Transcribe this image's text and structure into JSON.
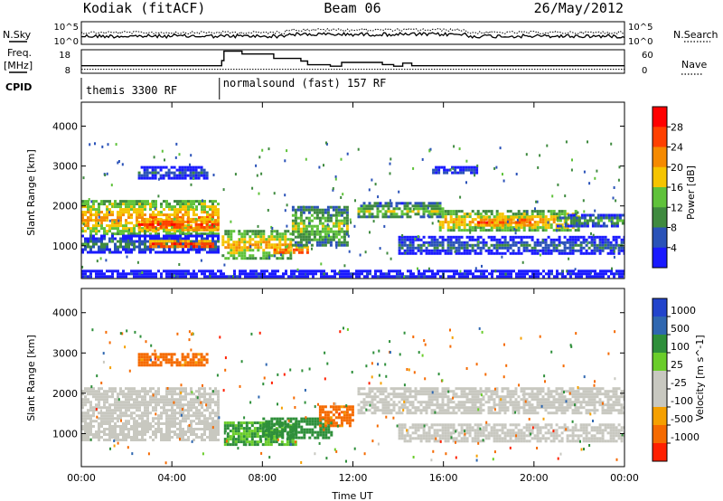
{
  "header": {
    "station": "Kodiak (fitACF)",
    "beam": "Beam 06",
    "date": "26/May/2012"
  },
  "side_labels": {
    "nsky": "N.Sky",
    "freq_line1": "Freq.",
    "freq_line2": "[MHz]",
    "cpid": "CPID",
    "nsearch": "N.Search",
    "nave": "Nave"
  },
  "colors": {
    "power_scale": [
      "#1a1aff",
      "#2a52b8",
      "#3f8a3f",
      "#5fc23a",
      "#f5c400",
      "#f58a00",
      "#ff4000",
      "#ff0000"
    ],
    "velocity_scale": [
      "#2244cc",
      "#2f67b0",
      "#2e8f3a",
      "#6acd2a",
      "#c8c8c0",
      "#c8c8c0",
      "#f5a000",
      "#f56a00",
      "#ff2000"
    ]
  },
  "chart_data": [
    {
      "type": "line",
      "name": "noise-panel",
      "left_axis": {
        "label": "N.Sky",
        "ticks": [
          "10^5",
          "10^0"
        ]
      },
      "right_axis": {
        "label": "N.Search",
        "ticks": [
          "10^5",
          "10^0"
        ]
      },
      "x": {
        "range": [
          0,
          24
        ],
        "unit": "hours UT"
      }
    },
    {
      "type": "line",
      "name": "frequency-panel",
      "left_axis": {
        "label": "Freq. [MHz]",
        "ticks": [
          18,
          8
        ],
        "range": [
          8,
          18
        ]
      },
      "right_axis": {
        "label": "Nave",
        "ticks": [
          60,
          0
        ],
        "range": [
          0,
          60
        ]
      },
      "freq_steps": [
        [
          0,
          11.2
        ],
        [
          6.2,
          11.2
        ],
        [
          6.2,
          13.4
        ],
        [
          6.3,
          13.4
        ],
        [
          6.3,
          17.4
        ],
        [
          7.1,
          17.4
        ],
        [
          7.1,
          16.2
        ],
        [
          8.5,
          16.2
        ],
        [
          8.5,
          14.3
        ],
        [
          9.7,
          14.3
        ],
        [
          9.7,
          13.2
        ],
        [
          10.0,
          13.2
        ],
        [
          10.0,
          11.6
        ],
        [
          11.0,
          11.6
        ],
        [
          11.0,
          11.0
        ],
        [
          11.5,
          11.0
        ],
        [
          11.5,
          12.6
        ],
        [
          13.3,
          12.6
        ],
        [
          13.3,
          11.7
        ],
        [
          13.8,
          11.7
        ],
        [
          13.8,
          11.0
        ],
        [
          14.2,
          11.0
        ],
        [
          14.2,
          12.3
        ],
        [
          14.6,
          12.3
        ],
        [
          14.6,
          11.2
        ],
        [
          24,
          11.2
        ]
      ],
      "nave_level": 10,
      "cpid_segments": [
        {
          "start": 0,
          "end": 6.1,
          "label": "themis 3300 RF"
        },
        {
          "start": 6.1,
          "end": 24,
          "label": "normalsound (fast) 157 RF"
        }
      ]
    },
    {
      "type": "heatmap",
      "name": "power-panel",
      "ylabel": "Slant Range [km]",
      "ylim": [
        180,
        4600
      ],
      "yticks": [
        1000,
        2000,
        3000,
        4000
      ],
      "xlim": [
        0,
        24
      ],
      "colorbar": {
        "label": "Power [dB]",
        "ticks": [
          4,
          8,
          12,
          16,
          20,
          24,
          28
        ],
        "range": [
          0,
          32
        ]
      },
      "bands": [
        {
          "t0": 0,
          "t1": 6.1,
          "r0": 1300,
          "r1": 2150,
          "value": 22
        },
        {
          "t0": 2.5,
          "t1": 6.0,
          "r0": 1400,
          "r1": 1700,
          "value": 28
        },
        {
          "t0": 0,
          "t1": 6.1,
          "r0": 850,
          "r1": 1280,
          "value": 10
        },
        {
          "t0": 3.0,
          "t1": 5.8,
          "r0": 950,
          "r1": 1150,
          "value": 29
        },
        {
          "t0": 0,
          "t1": 24,
          "r0": 200,
          "r1": 400,
          "value": 5
        },
        {
          "t0": 6.2,
          "t1": 9.3,
          "r0": 700,
          "r1": 1400,
          "value": 21
        },
        {
          "t0": 8.5,
          "t1": 10.0,
          "r0": 800,
          "r1": 1000,
          "value": 28
        },
        {
          "t0": 9.3,
          "t1": 11.8,
          "r0": 1000,
          "r1": 2000,
          "value": 16
        },
        {
          "t0": 12.2,
          "t1": 16.0,
          "r0": 1700,
          "r1": 2100,
          "value": 16
        },
        {
          "t0": 15.8,
          "t1": 22.0,
          "r0": 1400,
          "r1": 1900,
          "value": 21
        },
        {
          "t0": 17.5,
          "t1": 19.8,
          "r0": 1500,
          "r1": 1750,
          "value": 27
        },
        {
          "t0": 14.0,
          "t1": 24,
          "r0": 800,
          "r1": 1250,
          "value": 9
        },
        {
          "t0": 21.0,
          "t1": 24,
          "r0": 1500,
          "r1": 1800,
          "value": 13
        },
        {
          "t0": 2.5,
          "t1": 5.5,
          "r0": 2700,
          "r1": 3000,
          "value": 8
        },
        {
          "t0": 15.5,
          "t1": 17.5,
          "r0": 2800,
          "r1": 3000,
          "value": 8
        }
      ]
    },
    {
      "type": "heatmap",
      "name": "velocity-panel",
      "ylabel": "Slant Range [km]",
      "ylim": [
        180,
        4600
      ],
      "yticks": [
        1000,
        2000,
        3000,
        4000
      ],
      "xlim": [
        0,
        24
      ],
      "xticks": [
        "00:00",
        "04:00",
        "08:00",
        "12:00",
        "16:00",
        "20:00",
        "00:00"
      ],
      "xlabel": "Time UT",
      "colorbar": {
        "label": "Velocity [m s^-1]",
        "ticks": [
          1000,
          500,
          100,
          25,
          -25,
          -100,
          -500,
          -1000
        ]
      },
      "bands": [
        {
          "t0": 0,
          "t1": 6.1,
          "r0": 1300,
          "r1": 2150,
          "value": 0
        },
        {
          "t0": 0,
          "t1": 6.1,
          "r0": 850,
          "r1": 1280,
          "value": 0
        },
        {
          "t0": 6.3,
          "t1": 9.5,
          "r0": 700,
          "r1": 1300,
          "value": 120
        },
        {
          "t0": 8.0,
          "t1": 11.0,
          "r0": 900,
          "r1": 1400,
          "value": 300
        },
        {
          "t0": 10.5,
          "t1": 12.0,
          "r0": 1200,
          "r1": 1700,
          "value": -200
        },
        {
          "t0": 12.2,
          "t1": 24,
          "r0": 1500,
          "r1": 2150,
          "value": 0
        },
        {
          "t0": 14.0,
          "t1": 24,
          "r0": 800,
          "r1": 1250,
          "value": 0
        },
        {
          "t0": 2.5,
          "t1": 5.5,
          "r0": 2700,
          "r1": 3000,
          "value": -200
        }
      ]
    }
  ]
}
